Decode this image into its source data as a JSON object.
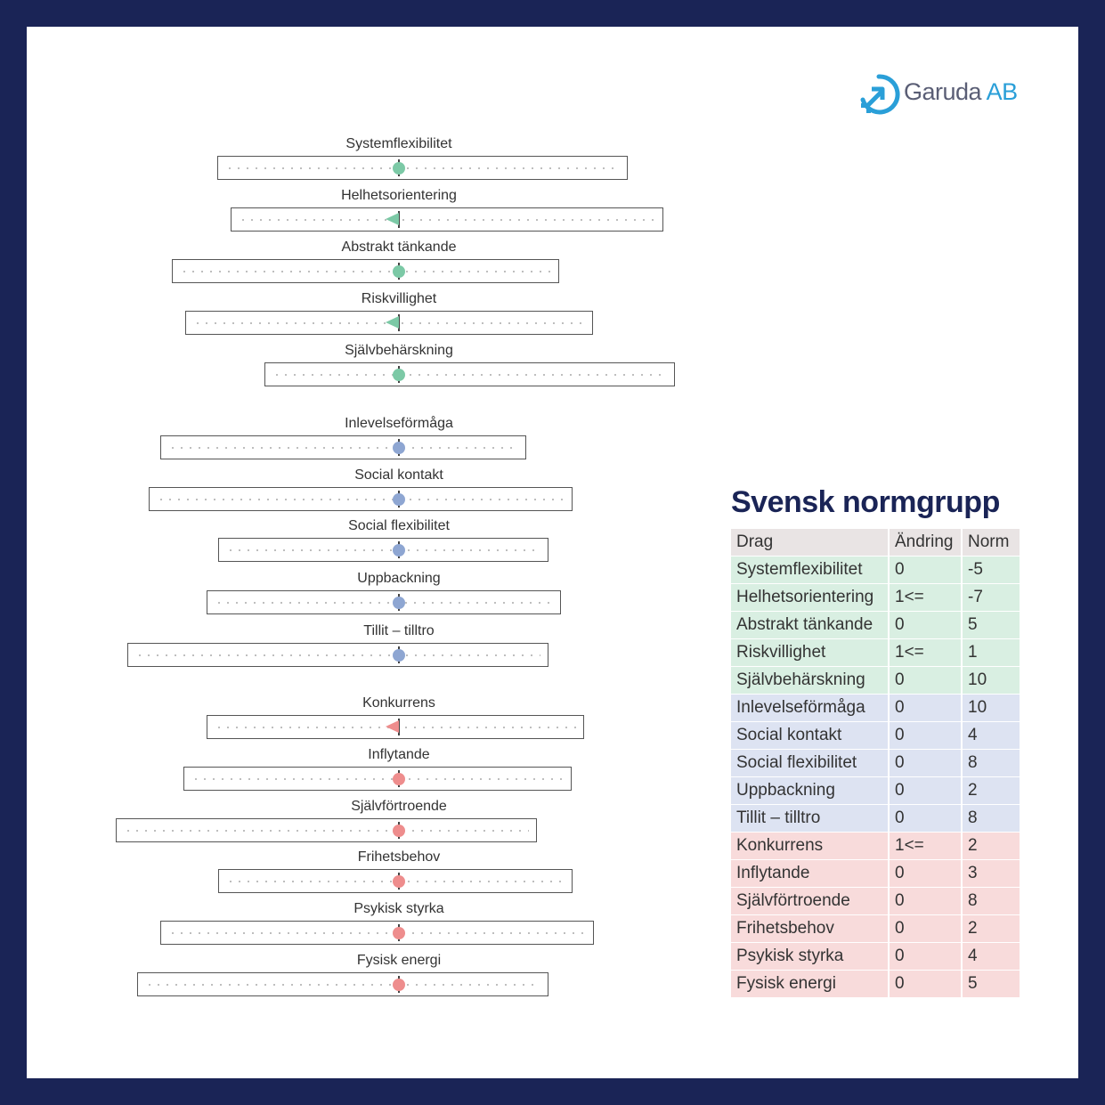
{
  "brand": {
    "name": "Garuda",
    "suffix": " AB",
    "color": "#2a9fd8"
  },
  "colors": {
    "green": "#7cc9a6",
    "blue": "#8ea6d2",
    "red": "#ee8d8d",
    "row_green": "#d9efe2",
    "row_blue": "#dde3f2",
    "row_red": "#f8dbdb",
    "header_bg": "#e9e4e4"
  },
  "traits": [
    {
      "label": "Systemflexibilitet",
      "group": "green",
      "marker": "dot"
    },
    {
      "label": "Helhetsorientering",
      "group": "green",
      "marker": "flag"
    },
    {
      "label": "Abstrakt tänkande",
      "group": "green",
      "marker": "dot"
    },
    {
      "label": "Riskvillighet",
      "group": "green",
      "marker": "flag"
    },
    {
      "label": "Självbehärskning",
      "group": "green",
      "marker": "dot"
    },
    {
      "label": "Inlevelseförmåga",
      "group": "blue",
      "marker": "dot"
    },
    {
      "label": "Social kontakt",
      "group": "blue",
      "marker": "dot"
    },
    {
      "label": "Social flexibilitet",
      "group": "blue",
      "marker": "dot"
    },
    {
      "label": "Uppbackning",
      "group": "blue",
      "marker": "dot"
    },
    {
      "label": "Tillit – tilltro",
      "group": "blue",
      "marker": "dot"
    },
    {
      "label": "Konkurrens",
      "group": "red",
      "marker": "flag"
    },
    {
      "label": "Inflytande",
      "group": "red",
      "marker": "dot"
    },
    {
      "label": "Självförtroende",
      "group": "red",
      "marker": "dot"
    },
    {
      "label": "Frihetsbehov",
      "group": "red",
      "marker": "dot"
    },
    {
      "label": "Psykisk styrka",
      "group": "red",
      "marker": "dot"
    },
    {
      "label": "Fysisk energi",
      "group": "red",
      "marker": "dot"
    }
  ],
  "norm": {
    "title": "Svensk normgrupp",
    "headers": [
      "Drag",
      "Ändring",
      "Norm"
    ],
    "rows": [
      {
        "drag": "Systemflexibilitet",
        "andring": "0",
        "norm": "-5",
        "group": "green"
      },
      {
        "drag": "Helhetsorientering",
        "andring": "1<=",
        "norm": "-7",
        "group": "green"
      },
      {
        "drag": "Abstrakt tänkande",
        "andring": "0",
        "norm": "5",
        "group": "green"
      },
      {
        "drag": "Riskvillighet",
        "andring": "1<=",
        "norm": "1",
        "group": "green"
      },
      {
        "drag": "Självbehärskning",
        "andring": "0",
        "norm": "10",
        "group": "green"
      },
      {
        "drag": "Inlevelseförmåga",
        "andring": "0",
        "norm": "10",
        "group": "blue"
      },
      {
        "drag": "Social kontakt",
        "andring": "0",
        "norm": "4",
        "group": "blue"
      },
      {
        "drag": "Social flexibilitet",
        "andring": "0",
        "norm": "8",
        "group": "blue"
      },
      {
        "drag": "Uppbackning",
        "andring": "0",
        "norm": "2",
        "group": "blue"
      },
      {
        "drag": "Tillit – tilltro",
        "andring": "0",
        "norm": "8",
        "group": "blue"
      },
      {
        "drag": "Konkurrens",
        "andring": "1<=",
        "norm": "2",
        "group": "red"
      },
      {
        "drag": "Inflytande",
        "andring": "0",
        "norm": "3",
        "group": "red"
      },
      {
        "drag": "Självförtroende",
        "andring": "0",
        "norm": "8",
        "group": "red"
      },
      {
        "drag": "Frihetsbehov",
        "andring": "0",
        "norm": "2",
        "group": "red"
      },
      {
        "drag": "Psykisk styrka",
        "andring": "0",
        "norm": "4",
        "group": "red"
      },
      {
        "drag": "Fysisk energi",
        "andring": "0",
        "norm": "5",
        "group": "red"
      }
    ]
  }
}
